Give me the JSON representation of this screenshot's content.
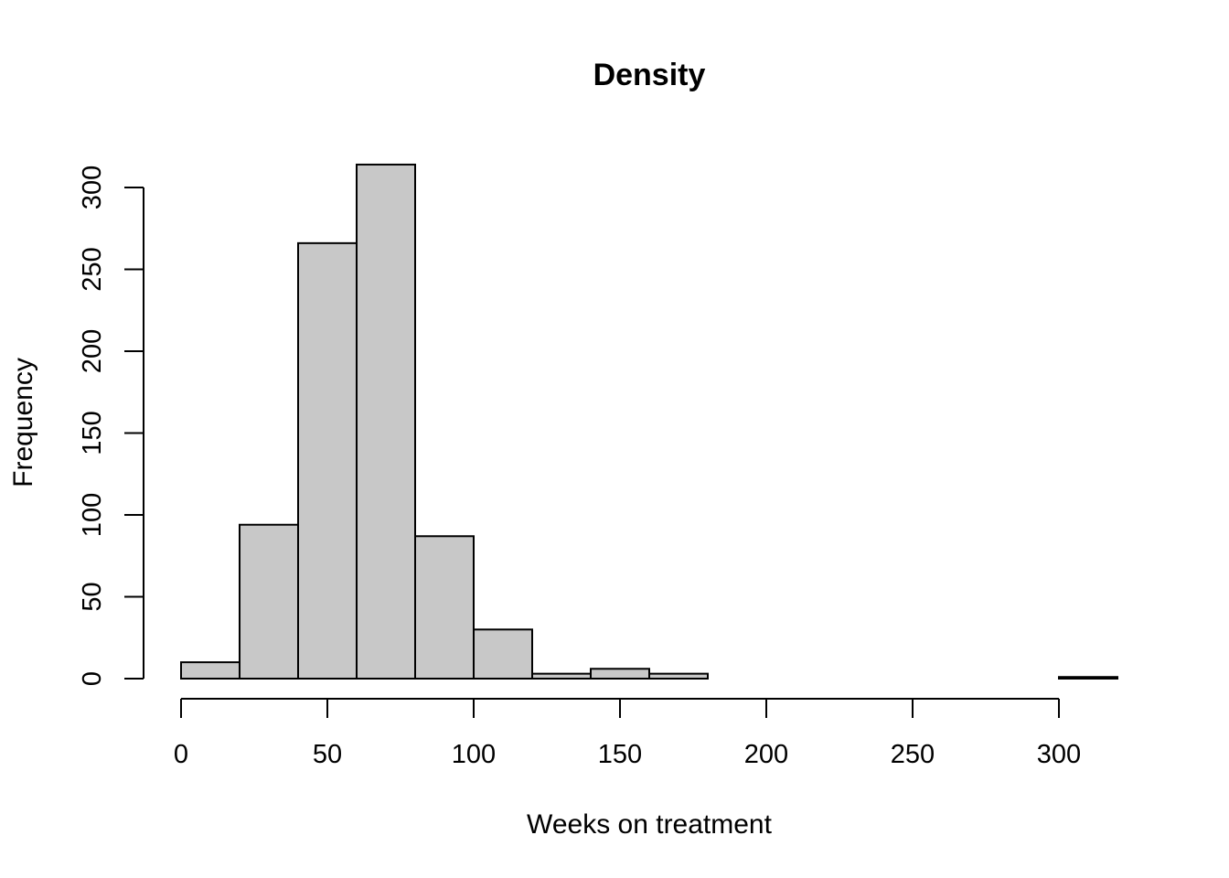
{
  "chart_data": {
    "type": "bar",
    "title": "Density",
    "xlabel": "Weeks on treatment",
    "ylabel": "Frequency",
    "bin_edges": [
      0,
      20,
      40,
      60,
      80,
      100,
      120,
      140,
      160,
      180,
      200,
      220,
      240,
      260,
      280,
      300,
      320
    ],
    "values": [
      10,
      94,
      266,
      314,
      87,
      30,
      3,
      6,
      3,
      0,
      0,
      0,
      0,
      0,
      0,
      1
    ],
    "xticks": [
      0,
      50,
      100,
      150,
      200,
      250,
      300
    ],
    "yticks": [
      0,
      50,
      100,
      150,
      200,
      250,
      300
    ],
    "xlim": [
      0,
      320
    ],
    "ylim": [
      0,
      314
    ],
    "bar_color": "#c8c8c8",
    "grid": false
  }
}
